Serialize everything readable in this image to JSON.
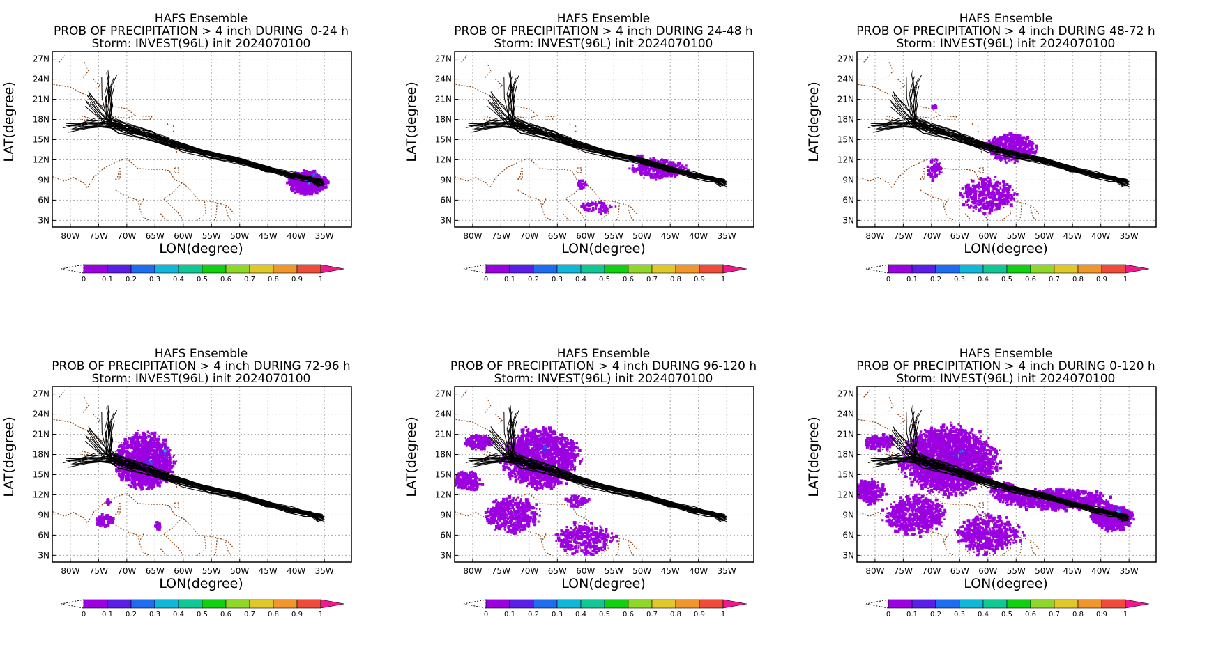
{
  "panels": [
    {
      "model": "HAFS Ensemble",
      "product": "PROB OF PRECIPITATION > 4 inch DURING  0-24 h",
      "storm": "Storm: INVEST(96L) init 2024070100",
      "precip": "p0"
    },
    {
      "model": "HAFS Ensemble",
      "product": "PROB OF PRECIPITATION > 4 inch DURING 24-48 h",
      "storm": "Storm: INVEST(96L) init 2024070100",
      "precip": "p1"
    },
    {
      "model": "HAFS Ensemble",
      "product": "PROB OF PRECIPITATION > 4 inch DURING 48-72 h",
      "storm": "Storm: INVEST(96L) init 2024070100",
      "precip": "p2"
    },
    {
      "model": "HAFS Ensemble",
      "product": "PROB OF PRECIPITATION > 4 inch DURING 72-96 h",
      "storm": "Storm: INVEST(96L) init 2024070100",
      "precip": "p3"
    },
    {
      "model": "HAFS Ensemble",
      "product": "PROB OF PRECIPITATION > 4 inch DURING 96-120 h",
      "storm": "Storm: INVEST(96L) init 2024070100",
      "precip": "p4"
    },
    {
      "model": "HAFS Ensemble",
      "product": "PROB OF PRECIPITATION > 4 inch DURING 0-120 h",
      "storm": "Storm: INVEST(96L) init 2024070100",
      "precip": "p5"
    }
  ],
  "axes": {
    "xlabel": "LON(degree)",
    "ylabel": "LAT(degree)",
    "lon_ticks": [
      "80W",
      "75W",
      "70W",
      "65W",
      "60W",
      "55W",
      "50W",
      "45W",
      "40W",
      "35W"
    ],
    "lat_ticks": [
      "27N",
      "24N",
      "21N",
      "18N",
      "15N",
      "12N",
      "9N",
      "6N",
      "3N"
    ]
  },
  "colorbar": {
    "labels": [
      "0",
      "0.1",
      "0.2",
      "0.3",
      "0.4",
      "0.5",
      "0.6",
      "0.7",
      "0.8",
      "0.9",
      "1"
    ],
    "colors": [
      "#9b00e0",
      "#5b1de8",
      "#1e6cf0",
      "#0fb8d8",
      "#10c894",
      "#10d010",
      "#90d828",
      "#e0c828",
      "#f0962a",
      "#f04a3a"
    ],
    "over_color": "#f01890"
  }
}
